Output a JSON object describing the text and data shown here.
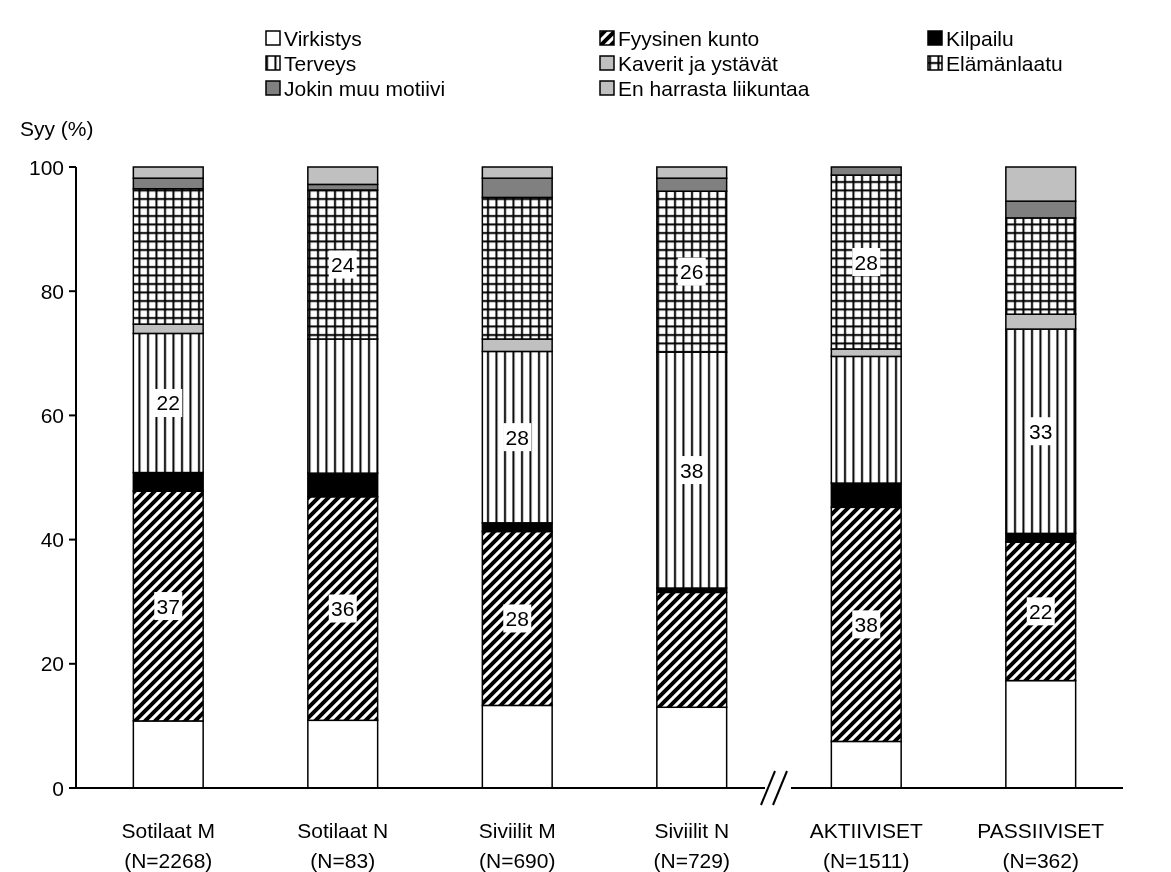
{
  "chart_data": {
    "type": "bar",
    "stacked": true,
    "ylabel": "Syy (%)",
    "categories": [
      "Sotilaat M\n(N=2268)",
      "Sotilaat N\n(N=83)",
      "Siviilit M\n(N=690)",
      "Siviilit N\n(N=729)",
      "AKTIIVISET\n(N=1511)",
      "PASSIIVISET\n(N=362)"
    ],
    "series": [
      {
        "name": "Virkistys",
        "color": "#ffffff",
        "values": [
          10.8,
          10.9,
          13.3,
          13,
          7.5,
          17.3
        ]
      },
      {
        "name": "Fyysinen kunto",
        "color": "#000000",
        "values": [
          37,
          36,
          28,
          18.5,
          37.7,
          22.3
        ],
        "value_labels": [
          "37",
          "36",
          "28",
          null,
          "38",
          "22"
        ]
      },
      {
        "name": "Kilpailu",
        "color": "#000000",
        "values": [
          3,
          3.8,
          1.4,
          0.7,
          3.9,
          1.4
        ]
      },
      {
        "name": "Terveys",
        "color": "#000000",
        "values": [
          22.4,
          21.6,
          27.6,
          38,
          20.4,
          32.9
        ],
        "value_labels": [
          "22",
          null,
          "28",
          "38",
          null,
          "33"
        ]
      },
      {
        "name": "Kaverit ja ystävät",
        "color": "#c0c0c0",
        "values": [
          1.5,
          0,
          2,
          0,
          1.2,
          2.4
        ]
      },
      {
        "name": "Elämänlaatu",
        "color": "#000000",
        "values": [
          21.8,
          24,
          22.8,
          25.9,
          28,
          15.5
        ],
        "value_labels": [
          null,
          "24",
          null,
          "26",
          "28",
          null
        ]
      },
      {
        "name": "Jokin muu motiivi",
        "color": "#808080",
        "values": [
          1.7,
          0.9,
          3.1,
          2.1,
          1.3,
          2.7
        ]
      },
      {
        "name": "En harrasta liikuntaa",
        "color": "#c0c0c0",
        "values": [
          1.8,
          2.8,
          1.8,
          1.8,
          0,
          5.5
        ]
      }
    ],
    "ylim": [
      0,
      100
    ],
    "yticks": [
      0,
      20,
      40,
      60,
      80,
      100
    ],
    "grid": false,
    "legend": "top"
  }
}
